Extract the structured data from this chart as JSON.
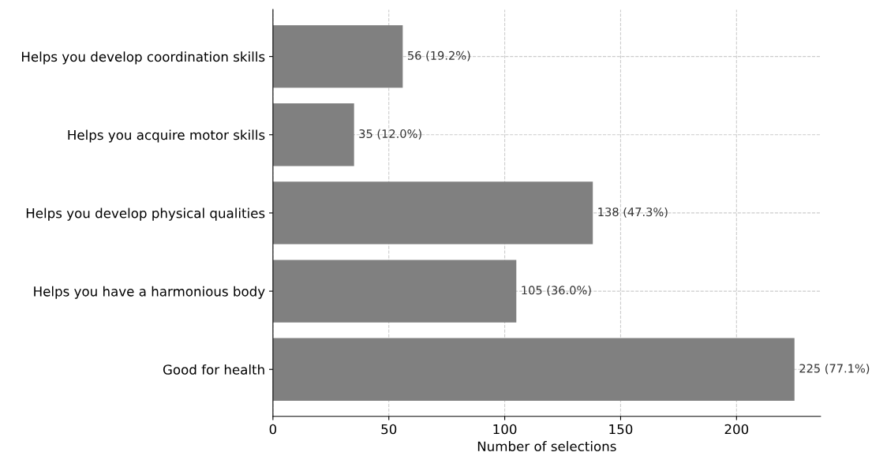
{
  "chart_data": {
    "type": "bar",
    "orientation": "horizontal",
    "categories": [
      "Helps you develop coordination skills",
      "Helps you acquire motor skills",
      "Helps you develop physical qualities",
      "Helps you have a harmonious body",
      "Good for health"
    ],
    "values": [
      56,
      35,
      138,
      105,
      225
    ],
    "value_labels": [
      "56 (19.2%)",
      "35 (12.0%)",
      "138 (47.3%)",
      "105 (36.0%)",
      "225 (77.1%)"
    ],
    "color": "#808080",
    "xlabel": "Number of selections",
    "xlim": [
      0,
      236.25
    ],
    "xticks": [
      0,
      50,
      100,
      150,
      200
    ],
    "grid": true
  }
}
